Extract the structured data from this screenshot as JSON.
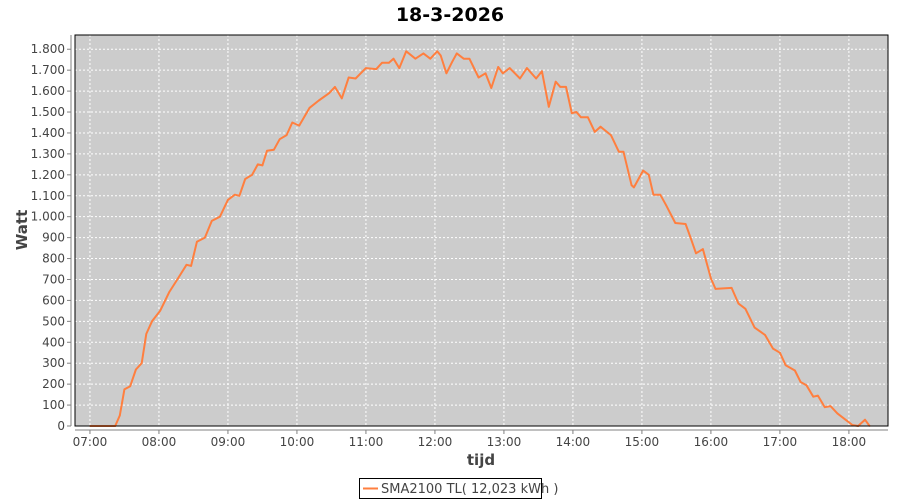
{
  "chart_data": {
    "type": "line",
    "title": "18-3-2026",
    "xlabel": "tijd",
    "ylabel": "Watt",
    "xlim": [
      "06:47",
      "18:34"
    ],
    "ylim": [
      0,
      1868
    ],
    "grid": true,
    "legend_placement": "bottom",
    "x_ticks": [
      "07:00",
      "08:00",
      "09:00",
      "10:00",
      "11:00",
      "12:00",
      "13:00",
      "14:00",
      "15:00",
      "16:00",
      "17:00",
      "18:00"
    ],
    "y_ticks": [
      0,
      100,
      200,
      300,
      400,
      500,
      600,
      700,
      800,
      900,
      1000,
      1100,
      1200,
      1300,
      1400,
      1500,
      1600,
      1700,
      1800
    ],
    "y_tick_labels": [
      "0",
      "100",
      "200",
      "300",
      "400",
      "500",
      "600",
      "700",
      "800",
      "900",
      "1.000",
      "1.100",
      "1.200",
      "1.300",
      "1.400",
      "1.500",
      "1.600",
      "1.700",
      "1.800"
    ],
    "colors": {
      "plot_background": "#cccccc",
      "grid": "#ffffff",
      "series": "#ff7f3f"
    },
    "series": [
      {
        "name": "SMA2100 TL( 12,023 kWh )",
        "x": [
          "07:00",
          "07:20",
          "07:22",
          "07:26",
          "07:30",
          "07:35",
          "07:40",
          "07:45",
          "07:49",
          "07:54",
          "08:01",
          "08:09",
          "08:16",
          "08:24",
          "08:28",
          "08:33",
          "08:40",
          "08:46",
          "08:53",
          "09:00",
          "09:06",
          "09:10",
          "09:15",
          "09:21",
          "09:26",
          "09:30",
          "09:34",
          "09:40",
          "09:45",
          "09:51",
          "09:56",
          "10:02",
          "10:11",
          "10:19",
          "10:28",
          "10:33",
          "10:39",
          "10:45",
          "10:51",
          "11:00",
          "11:09",
          "11:14",
          "11:20",
          "11:24",
          "11:29",
          "11:35",
          "11:43",
          "11:50",
          "11:56",
          "12:02",
          "12:05",
          "12:10",
          "12:15",
          "12:19",
          "12:25",
          "12:30",
          "12:38",
          "12:44",
          "12:49",
          "12:55",
          "12:59",
          "13:05",
          "13:14",
          "13:20",
          "13:28",
          "13:33",
          "13:39",
          "13:45",
          "13:49",
          "13:54",
          "13:59",
          "14:03",
          "14:07",
          "14:13",
          "14:19",
          "14:24",
          "14:33",
          "14:40",
          "14:44",
          "14:51",
          "14:53",
          "15:01",
          "15:06",
          "15:10",
          "15:16",
          "15:21",
          "15:29",
          "15:38",
          "15:42",
          "15:47",
          "15:53",
          "16:00",
          "16:04",
          "16:18",
          "16:24",
          "16:30",
          "16:38",
          "16:47",
          "16:54",
          "17:00",
          "17:05",
          "17:13",
          "17:18",
          "17:23",
          "17:29",
          "17:33",
          "17:39",
          "17:44",
          "17:50",
          "17:57",
          "18:03",
          "18:08",
          "18:14",
          "18:18"
        ],
        "values": [
          0,
          0,
          0,
          50,
          175,
          190,
          270,
          300,
          440,
          500,
          550,
          640,
          700,
          770,
          765,
          880,
          900,
          980,
          1000,
          1080,
          1105,
          1100,
          1180,
          1200,
          1250,
          1245,
          1315,
          1320,
          1370,
          1390,
          1450,
          1435,
          1520,
          1555,
          1590,
          1620,
          1565,
          1665,
          1660,
          1710,
          1705,
          1735,
          1735,
          1755,
          1710,
          1790,
          1755,
          1780,
          1755,
          1790,
          1770,
          1685,
          1740,
          1780,
          1755,
          1755,
          1665,
          1685,
          1615,
          1715,
          1685,
          1710,
          1660,
          1710,
          1660,
          1695,
          1525,
          1645,
          1620,
          1620,
          1495,
          1500,
          1475,
          1475,
          1405,
          1430,
          1390,
          1310,
          1310,
          1150,
          1140,
          1220,
          1200,
          1105,
          1105,
          1055,
          970,
          965,
          905,
          825,
          845,
          705,
          655,
          660,
          585,
          560,
          470,
          435,
          370,
          350,
          290,
          265,
          210,
          195,
          140,
          145,
          90,
          95,
          60,
          30,
          5,
          0,
          30,
          0
        ]
      }
    ]
  }
}
